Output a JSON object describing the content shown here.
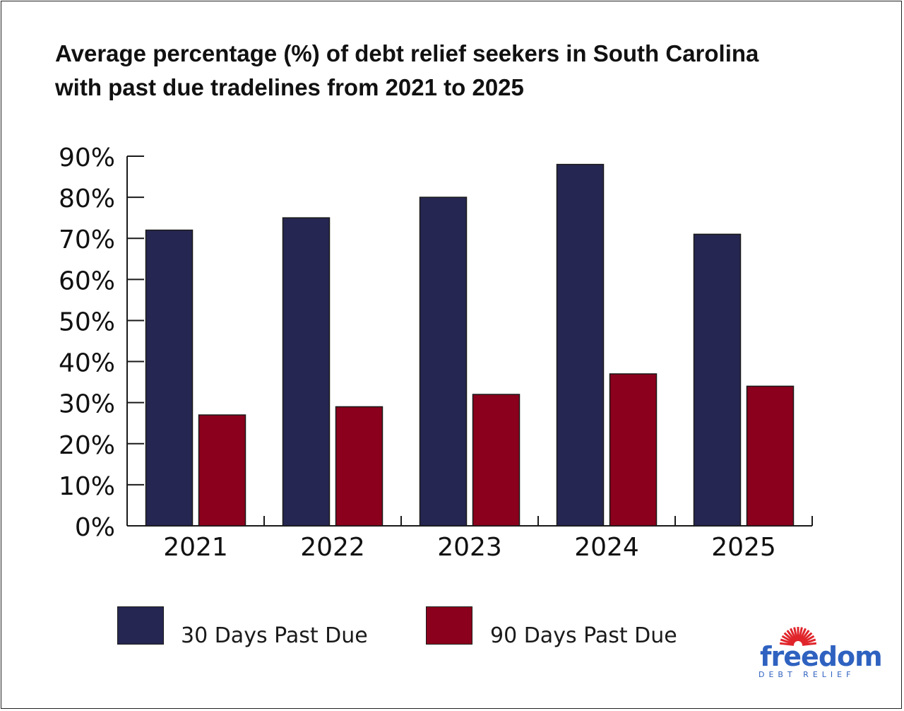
{
  "colors": {
    "series_30": "#262652",
    "series_90": "#8b001c",
    "axis": "#1a1a1a",
    "text": "#111111",
    "logo_blue": "#2f62c0",
    "logo_red": "#e0252b"
  },
  "chart_data": {
    "type": "bar",
    "title_lines": [
      "Average percentage (%) of debt relief seekers in South Carolina",
      "with past due tradelines from 2021 to 2025"
    ],
    "categories": [
      "2021",
      "2022",
      "2023",
      "2024",
      "2025"
    ],
    "series": [
      {
        "name": "30 Days Past Due",
        "values": [
          72,
          75,
          80,
          88,
          71
        ]
      },
      {
        "name": "90 Days Past Due",
        "values": [
          27,
          29,
          32,
          37,
          34
        ]
      }
    ],
    "ylim": [
      0,
      90
    ],
    "yticks": [
      0,
      10,
      20,
      30,
      40,
      50,
      60,
      70,
      80,
      90
    ],
    "ytick_labels": [
      "0%",
      "10%",
      "20%",
      "30%",
      "40%",
      "50%",
      "60%",
      "70%",
      "80%",
      "90%"
    ],
    "xlabel": "",
    "ylabel": "",
    "grid": false,
    "legend_position": "bottom"
  },
  "logo": {
    "word": "freedom",
    "sub": "DEBT RELIEF"
  }
}
